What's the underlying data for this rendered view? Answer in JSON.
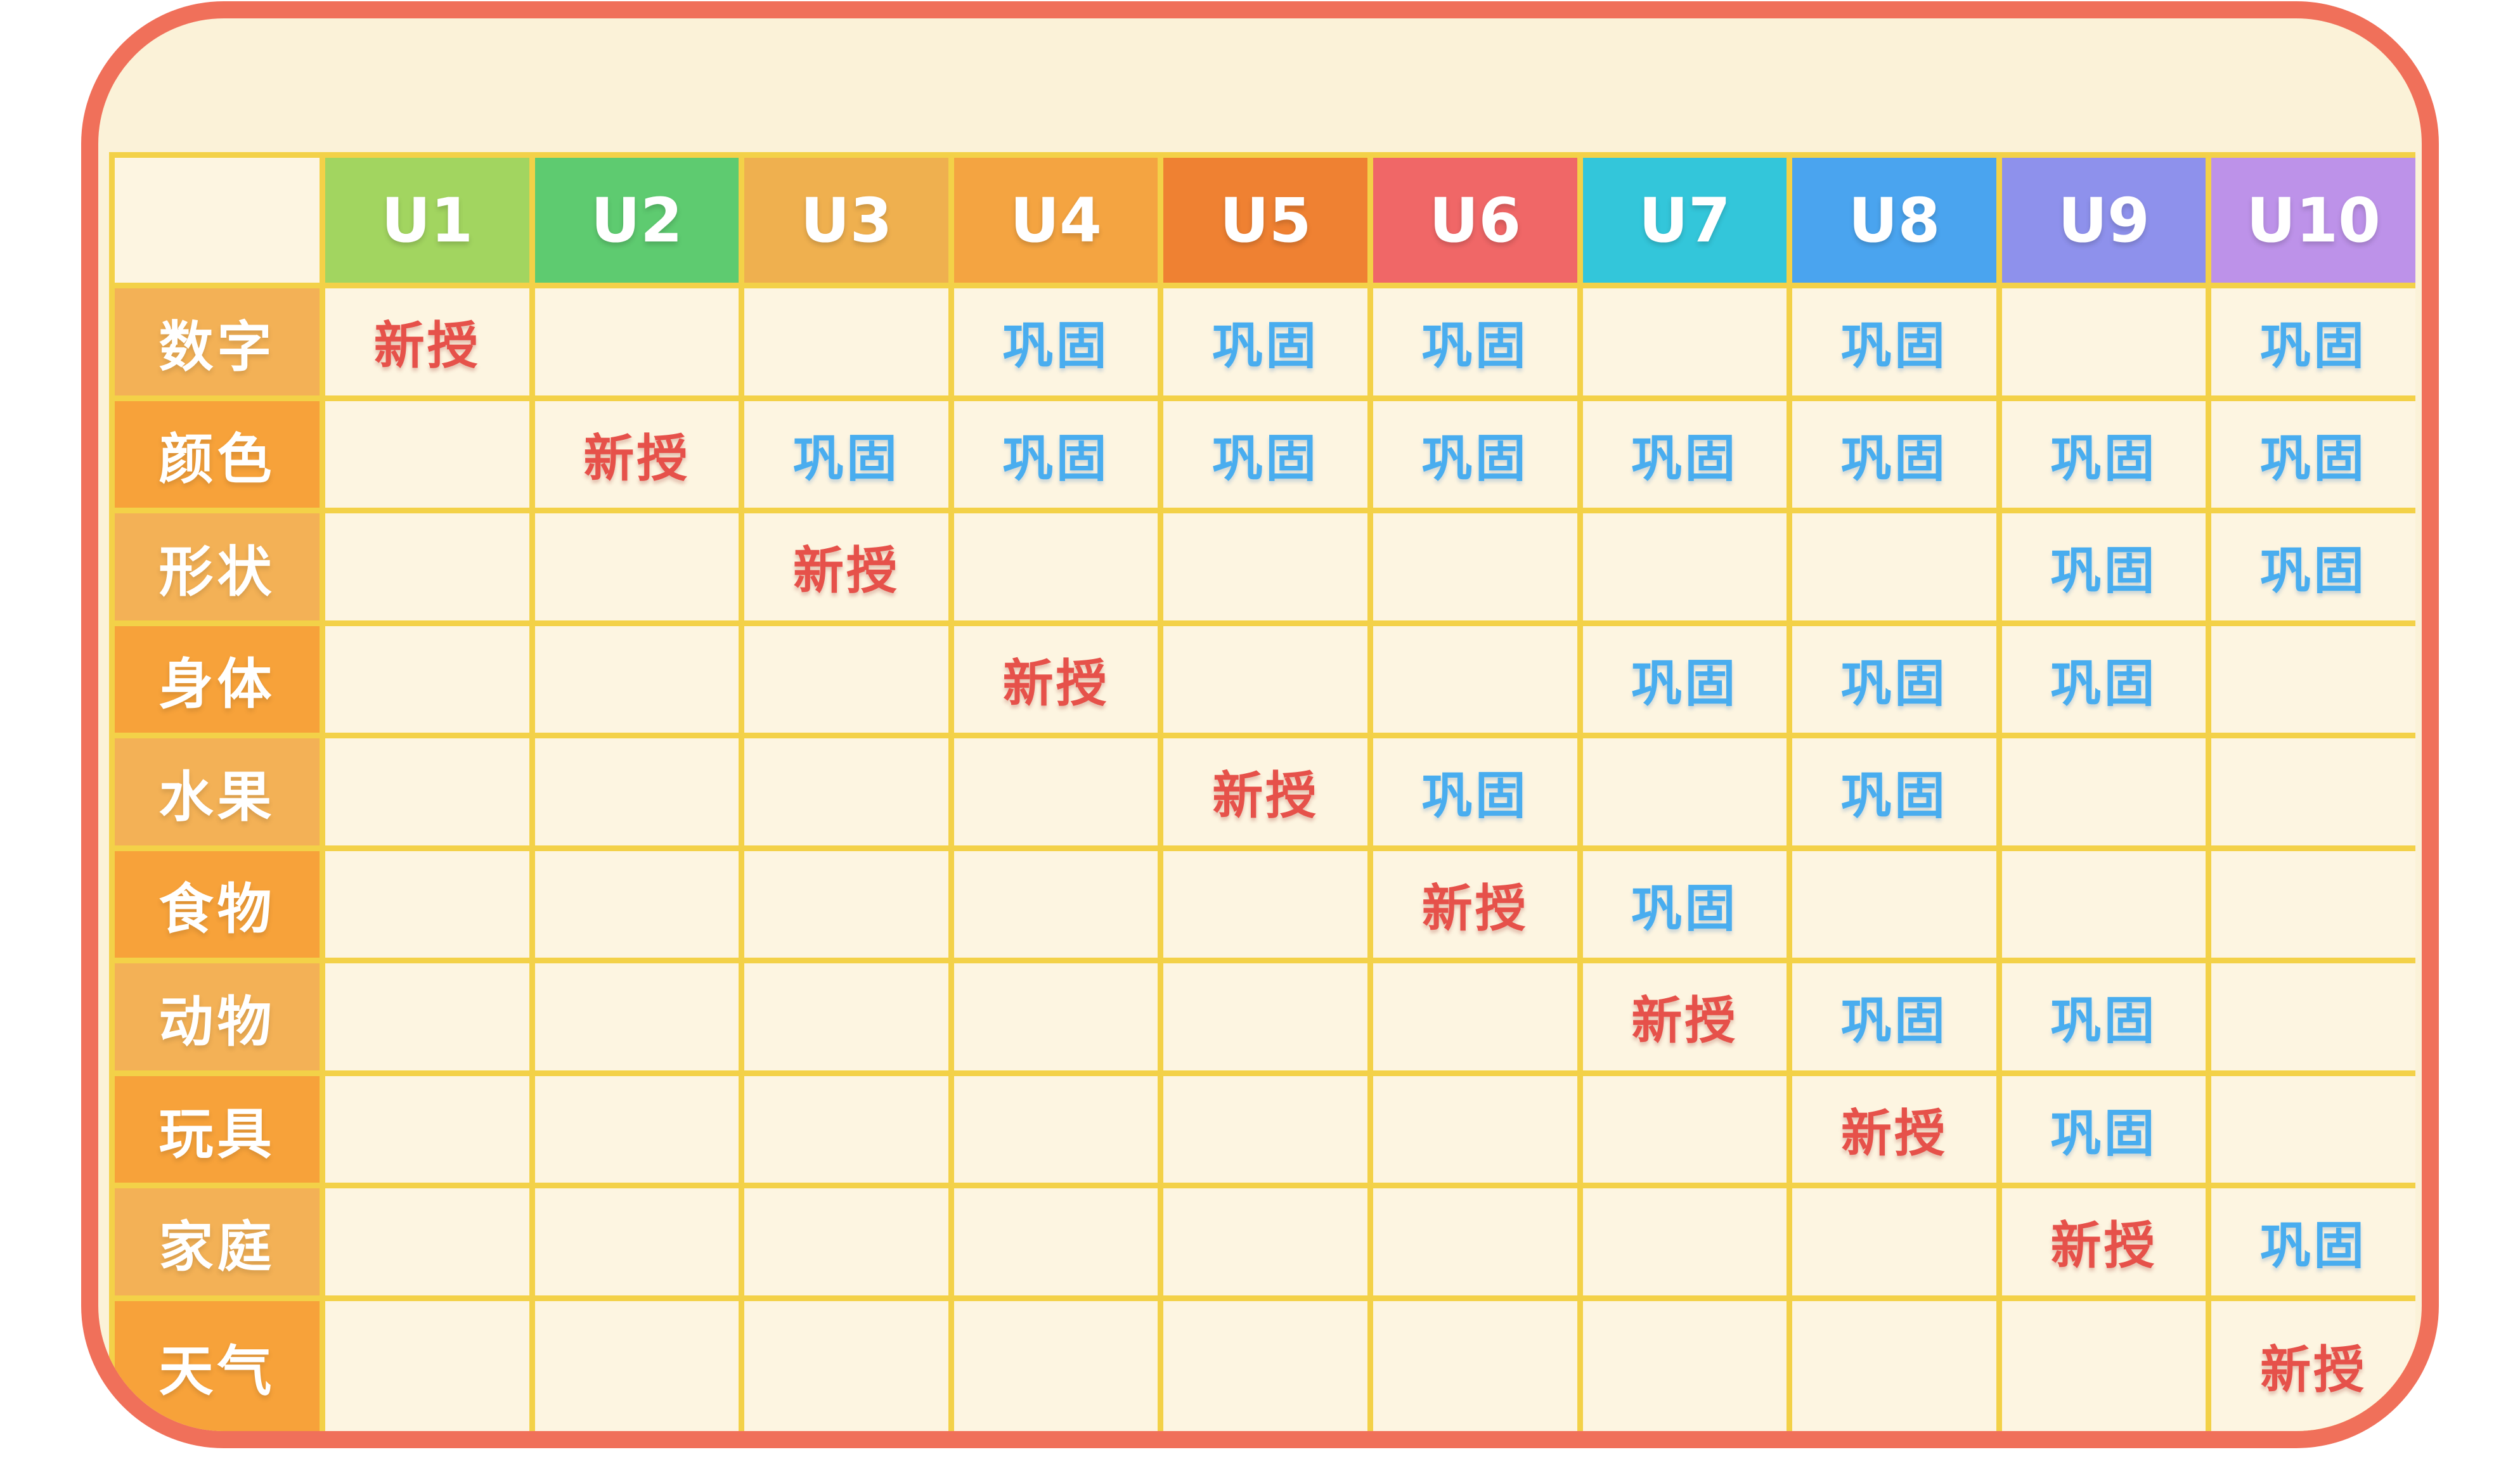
{
  "chart_data": {
    "type": "table",
    "title": "",
    "columns": [
      {
        "label": "U1",
        "color": "#a2d560"
      },
      {
        "label": "U2",
        "color": "#5ecb70"
      },
      {
        "label": "U3",
        "color": "#efb04f"
      },
      {
        "label": "U4",
        "color": "#f4a441"
      },
      {
        "label": "U5",
        "color": "#ef8132"
      },
      {
        "label": "U6",
        "color": "#f06767"
      },
      {
        "label": "U7",
        "color": "#33c6da"
      },
      {
        "label": "U8",
        "color": "#4aa4ef"
      },
      {
        "label": "U9",
        "color": "#8e91ec"
      },
      {
        "label": "U10",
        "color": "#bd92e9"
      }
    ],
    "row_labels": [
      "数字",
      "颜色",
      "形状",
      "身体",
      "水果",
      "食物",
      "动物",
      "玩具",
      "家庭",
      "天气"
    ],
    "legend": {
      "new": {
        "label": "新授",
        "color": "#e6514a"
      },
      "review": {
        "label": "巩固",
        "color": "#49adef"
      }
    },
    "matrix": [
      [
        "新授",
        "",
        "",
        "巩固",
        "巩固",
        "巩固",
        "",
        "巩固",
        "",
        "巩固"
      ],
      [
        "",
        "新授",
        "巩固",
        "巩固",
        "巩固",
        "巩固",
        "巩固",
        "巩固",
        "巩固",
        "巩固"
      ],
      [
        "",
        "",
        "新授",
        "",
        "",
        "",
        "",
        "",
        "巩固",
        "巩固"
      ],
      [
        "",
        "",
        "",
        "新授",
        "",
        "",
        "巩固",
        "巩固",
        "巩固",
        ""
      ],
      [
        "",
        "",
        "",
        "",
        "新授",
        "巩固",
        "",
        "巩固",
        "",
        ""
      ],
      [
        "",
        "",
        "",
        "",
        "",
        "新授",
        "巩固",
        "",
        "",
        ""
      ],
      [
        "",
        "",
        "",
        "",
        "",
        "",
        "新授",
        "巩固",
        "巩固",
        ""
      ],
      [
        "",
        "",
        "",
        "",
        "",
        "",
        "",
        "新授",
        "巩固",
        ""
      ],
      [
        "",
        "",
        "",
        "",
        "",
        "",
        "",
        "",
        "新授",
        "巩固"
      ],
      [
        "",
        "",
        "",
        "",
        "",
        "",
        "",
        "",
        "",
        "新授"
      ]
    ],
    "layout": {
      "frame_border_color": "#f0705a",
      "frame_background": "#fbf2d8",
      "grid_line_color": "#f3d148",
      "cell_background": "#fdf5e1",
      "row_label_color_odd": "#f3b156",
      "row_label_color_even": "#f7a23a",
      "header_text_color": "#ffffff"
    }
  }
}
